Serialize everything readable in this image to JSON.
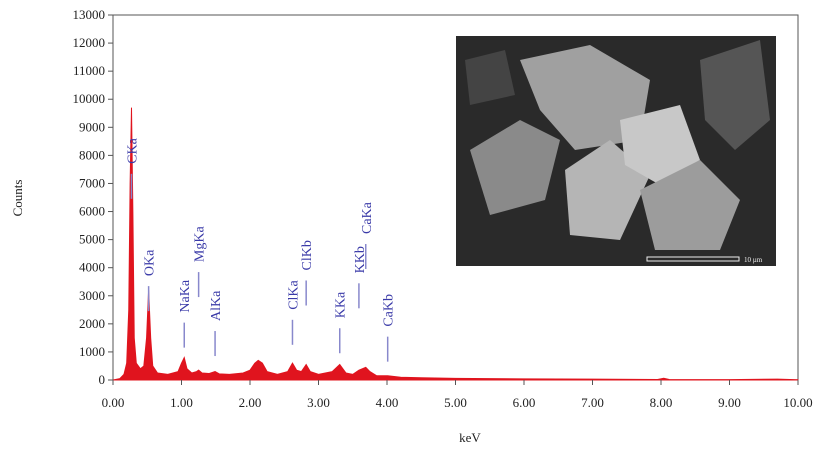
{
  "chart_data": {
    "type": "area",
    "color": "#e0141e",
    "x": [
      0.0,
      0.1,
      0.16,
      0.2,
      0.23,
      0.25,
      0.27,
      0.29,
      0.31,
      0.34,
      0.4,
      0.45,
      0.49,
      0.52,
      0.55,
      0.58,
      0.65,
      0.8,
      0.95,
      1.0,
      1.04,
      1.08,
      1.15,
      1.22,
      1.25,
      1.3,
      1.4,
      1.49,
      1.55,
      1.7,
      1.9,
      2.0,
      2.07,
      2.12,
      2.18,
      2.25,
      2.4,
      2.55,
      2.62,
      2.68,
      2.75,
      2.82,
      2.88,
      3.0,
      3.2,
      3.31,
      3.4,
      3.5,
      3.59,
      3.69,
      3.75,
      3.85,
      4.01,
      4.2,
      4.5,
      5.0,
      6.0,
      7.0,
      7.95,
      8.04,
      8.12,
      9.0,
      9.7,
      10.0
    ],
    "values": [
      0,
      50,
      200,
      600,
      2500,
      7000,
      9700,
      6000,
      1500,
      600,
      400,
      500,
      1500,
      3200,
      1500,
      500,
      250,
      200,
      300,
      600,
      800,
      400,
      250,
      300,
      350,
      250,
      230,
      300,
      220,
      200,
      250,
      350,
      600,
      700,
      600,
      300,
      200,
      300,
      600,
      350,
      300,
      550,
      300,
      200,
      300,
      550,
      250,
      200,
      350,
      450,
      300,
      150,
      150,
      100,
      80,
      60,
      40,
      30,
      20,
      60,
      20,
      15,
      30,
      10
    ],
    "xlabel": "keV",
    "ylabel": "Counts",
    "xlim": [
      0,
      10
    ],
    "ylim": [
      0,
      13000
    ],
    "xticks": [
      {
        "value": 0,
        "label": "0.00"
      },
      {
        "value": 1,
        "label": "1.00"
      },
      {
        "value": 2,
        "label": "2.00"
      },
      {
        "value": 3,
        "label": "3.00"
      },
      {
        "value": 4,
        "label": "4.00"
      },
      {
        "value": 5,
        "label": "5.00"
      },
      {
        "value": 6,
        "label": "6.00"
      },
      {
        "value": 7,
        "label": "7.00"
      },
      {
        "value": 8,
        "label": "8.00"
      },
      {
        "value": 9,
        "label": "9.00"
      },
      {
        "value": 10,
        "label": "10.00"
      }
    ],
    "yticks": [
      0,
      1000,
      2000,
      3000,
      4000,
      5000,
      6000,
      7000,
      8000,
      9000,
      10000,
      11000,
      12000,
      13000
    ],
    "annotations": [
      {
        "text": "CKa",
        "x": 0.27,
        "y": 7700
      },
      {
        "text": "OKa",
        "x": 0.52,
        "y": 3700
      },
      {
        "text": "NaKa",
        "x": 1.04,
        "y": 2400
      },
      {
        "text": "MgKa",
        "x": 1.25,
        "y": 4200
      },
      {
        "text": "AlKa",
        "x": 1.49,
        "y": 2100
      },
      {
        "text": "ClKa",
        "x": 2.62,
        "y": 2500
      },
      {
        "text": "ClKb",
        "x": 2.82,
        "y": 3900
      },
      {
        "text": "KKa",
        "x": 3.31,
        "y": 2200
      },
      {
        "text": "KKb",
        "x": 3.59,
        "y": 3800
      },
      {
        "text": "CaKa",
        "x": 3.69,
        "y": 5200
      },
      {
        "text": "CaKb",
        "x": 4.01,
        "y": 1900
      }
    ],
    "inset_scale_label": "10 µm"
  }
}
